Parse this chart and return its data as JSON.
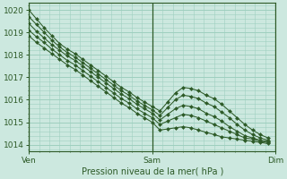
{
  "background_color": "#cce8df",
  "grid_color": "#9ecfbf",
  "line_color": "#2d5a27",
  "xlabel": "Pression niveau de la mer( hPa )",
  "xtick_labels": [
    "Ven",
    "Sam",
    "Dim"
  ],
  "xtick_positions": [
    0,
    48,
    96
  ],
  "ylim": [
    1013.7,
    1020.3
  ],
  "yticks": [
    1014,
    1015,
    1016,
    1017,
    1018,
    1019,
    1020
  ],
  "lines": [
    {
      "x": [
        0,
        3,
        6,
        9,
        12,
        15,
        18,
        21,
        24,
        27,
        30,
        33,
        36,
        39,
        42,
        45,
        48,
        51,
        54,
        57,
        60,
        63,
        66,
        69,
        72,
        75,
        78,
        81,
        84,
        87,
        90,
        93
      ],
      "y": [
        1020.0,
        1019.6,
        1019.2,
        1018.85,
        1018.5,
        1018.25,
        1018.05,
        1017.8,
        1017.55,
        1017.3,
        1017.05,
        1016.8,
        1016.55,
        1016.35,
        1016.1,
        1015.9,
        1015.7,
        1015.5,
        1015.9,
        1016.3,
        1016.55,
        1016.5,
        1016.4,
        1016.2,
        1016.05,
        1015.8,
        1015.5,
        1015.2,
        1014.9,
        1014.65,
        1014.45,
        1014.3
      ]
    },
    {
      "x": [
        0,
        3,
        6,
        9,
        12,
        15,
        18,
        21,
        24,
        27,
        30,
        33,
        36,
        39,
        42,
        45,
        48,
        51,
        54,
        57,
        60,
        63,
        66,
        69,
        72,
        75,
        78,
        81,
        84,
        87,
        90,
        93
      ],
      "y": [
        1019.7,
        1019.35,
        1019.0,
        1018.65,
        1018.35,
        1018.1,
        1017.9,
        1017.65,
        1017.4,
        1017.15,
        1016.9,
        1016.65,
        1016.4,
        1016.2,
        1015.95,
        1015.75,
        1015.55,
        1015.3,
        1015.65,
        1016.0,
        1016.2,
        1016.15,
        1016.05,
        1015.85,
        1015.7,
        1015.45,
        1015.2,
        1014.9,
        1014.65,
        1014.45,
        1014.3,
        1014.2
      ]
    },
    {
      "x": [
        0,
        3,
        6,
        9,
        12,
        15,
        18,
        21,
        24,
        27,
        30,
        33,
        36,
        39,
        42,
        45,
        48,
        51,
        54,
        57,
        60,
        63,
        66,
        69,
        72,
        75,
        78,
        81,
        84,
        87,
        90,
        93
      ],
      "y": [
        1019.4,
        1019.05,
        1018.75,
        1018.45,
        1018.2,
        1017.95,
        1017.75,
        1017.5,
        1017.25,
        1017.0,
        1016.75,
        1016.5,
        1016.25,
        1016.05,
        1015.8,
        1015.6,
        1015.4,
        1015.1,
        1015.35,
        1015.6,
        1015.75,
        1015.7,
        1015.6,
        1015.4,
        1015.25,
        1015.05,
        1014.8,
        1014.6,
        1014.4,
        1014.3,
        1014.2,
        1014.15
      ]
    },
    {
      "x": [
        0,
        3,
        6,
        9,
        12,
        15,
        18,
        21,
        24,
        27,
        30,
        33,
        36,
        39,
        42,
        45,
        48,
        51,
        54,
        57,
        60,
        63,
        66,
        69,
        72,
        75,
        78,
        81,
        84,
        87,
        90,
        93
      ],
      "y": [
        1019.1,
        1018.8,
        1018.55,
        1018.25,
        1018.0,
        1017.75,
        1017.55,
        1017.3,
        1017.05,
        1016.8,
        1016.55,
        1016.3,
        1016.05,
        1015.85,
        1015.6,
        1015.4,
        1015.2,
        1014.9,
        1015.05,
        1015.2,
        1015.35,
        1015.3,
        1015.2,
        1015.05,
        1014.9,
        1014.75,
        1014.6,
        1014.45,
        1014.3,
        1014.25,
        1014.15,
        1014.1
      ]
    },
    {
      "x": [
        0,
        3,
        6,
        9,
        12,
        15,
        18,
        21,
        24,
        27,
        30,
        33,
        36,
        39,
        42,
        45,
        48,
        51,
        54,
        57,
        60,
        63,
        66,
        69,
        72,
        75,
        78,
        81,
        84,
        87,
        90,
        93
      ],
      "y": [
        1018.85,
        1018.55,
        1018.3,
        1018.05,
        1017.8,
        1017.55,
        1017.35,
        1017.1,
        1016.85,
        1016.6,
        1016.35,
        1016.1,
        1015.85,
        1015.65,
        1015.4,
        1015.2,
        1015.0,
        1014.65,
        1014.7,
        1014.75,
        1014.8,
        1014.75,
        1014.65,
        1014.55,
        1014.45,
        1014.35,
        1014.3,
        1014.25,
        1014.2,
        1014.15,
        1014.1,
        1014.05
      ]
    }
  ],
  "vline_positions": [
    0,
    48,
    96
  ],
  "figsize": [
    3.2,
    2.0
  ],
  "dpi": 100
}
